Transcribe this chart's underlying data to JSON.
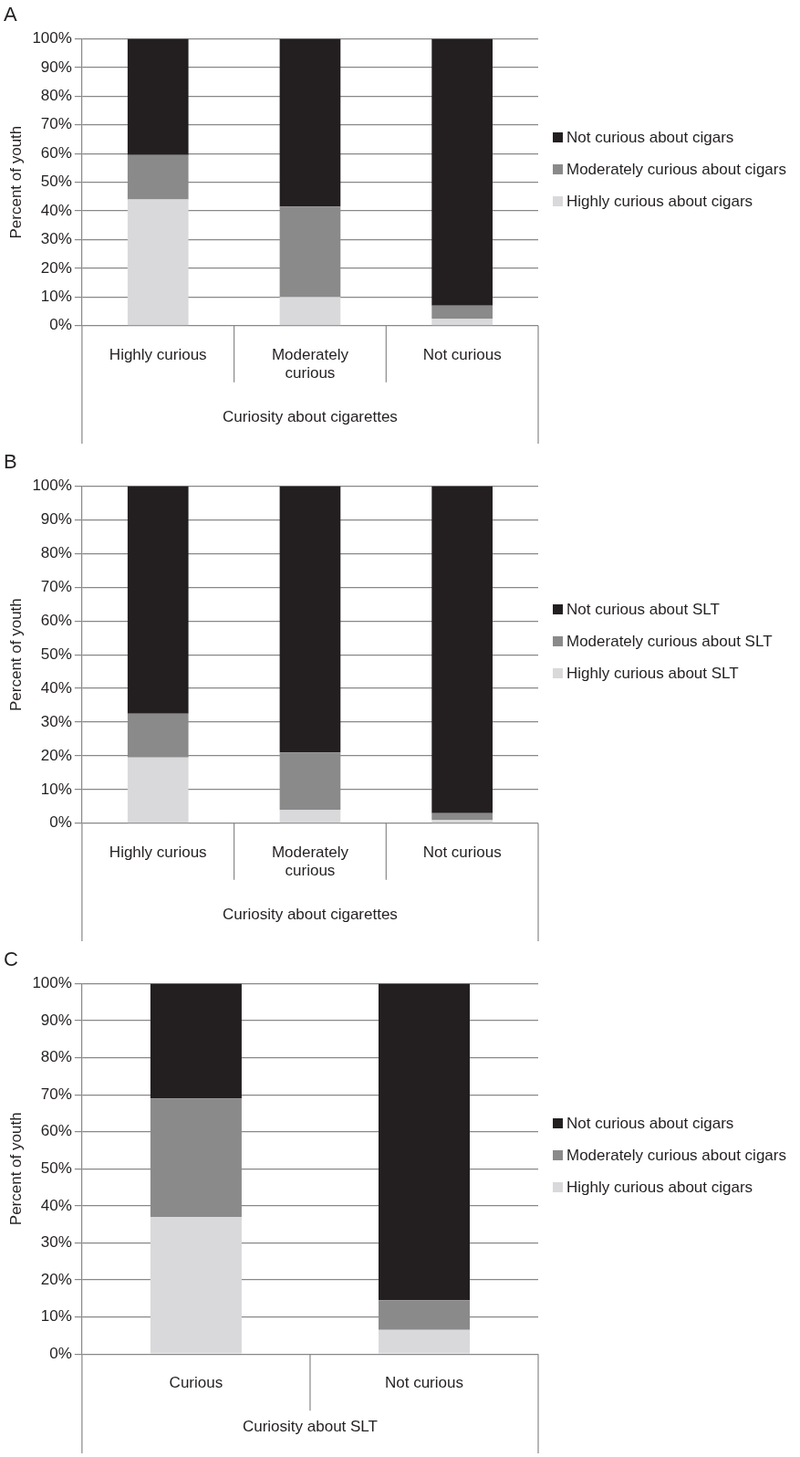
{
  "chart_data": [
    {
      "type": "bar",
      "title": "A",
      "stacked": true,
      "categories": [
        "Highly curious",
        "Moderately curious",
        "Not curious"
      ],
      "xlabel": "Curiosity about cigarettes",
      "ylabel": "Percent of youth",
      "ylim": [
        0,
        100
      ],
      "yticks": [
        {
          "value": 0,
          "label": "0%"
        },
        {
          "value": 10,
          "label": "10%"
        },
        {
          "value": 20,
          "label": "20%"
        },
        {
          "value": 30,
          "label": "30%"
        },
        {
          "value": 40,
          "label": "40%"
        },
        {
          "value": 50,
          "label": "50%"
        },
        {
          "value": 60,
          "label": "60%"
        },
        {
          "value": 70,
          "label": "70%"
        },
        {
          "value": 80,
          "label": "80%"
        },
        {
          "value": 90,
          "label": "90%"
        },
        {
          "value": 100,
          "label": "100%"
        }
      ],
      "grid": "y",
      "legend": "right",
      "series": [
        {
          "name": "Highly curious about cigars",
          "color": "#d9d9db",
          "values": [
            44,
            10,
            2.5
          ]
        },
        {
          "name": "Moderately curious about cigars",
          "color": "#8a8a8a",
          "values": [
            15.5,
            31.5,
            4.5
          ]
        },
        {
          "name": "Not curious about cigars",
          "color": "#231f20",
          "values": [
            40.5,
            58.5,
            93
          ]
        }
      ]
    },
    {
      "type": "bar",
      "title": "B",
      "stacked": true,
      "categories": [
        "Highly curious",
        "Moderately curious",
        "Not curious"
      ],
      "xlabel": "Curiosity about cigarettes",
      "ylabel": "Percent of youth",
      "ylim": [
        0,
        100
      ],
      "yticks": [
        {
          "value": 0,
          "label": "0%"
        },
        {
          "value": 10,
          "label": "10%"
        },
        {
          "value": 20,
          "label": "20%"
        },
        {
          "value": 30,
          "label": "30%"
        },
        {
          "value": 40,
          "label": "40%"
        },
        {
          "value": 50,
          "label": "50%"
        },
        {
          "value": 60,
          "label": "60%"
        },
        {
          "value": 70,
          "label": "70%"
        },
        {
          "value": 80,
          "label": "80%"
        },
        {
          "value": 90,
          "label": "90%"
        },
        {
          "value": 100,
          "label": "100%"
        }
      ],
      "grid": "y",
      "legend": "right",
      "series": [
        {
          "name": "Highly curious about SLT",
          "color": "#d9d9db",
          "values": [
            19.5,
            4,
            1
          ]
        },
        {
          "name": "Moderately curious about SLT",
          "color": "#8a8a8a",
          "values": [
            13,
            17,
            2
          ]
        },
        {
          "name": "Not curious about SLT",
          "color": "#231f20",
          "values": [
            67.5,
            79,
            97
          ]
        }
      ]
    },
    {
      "type": "bar",
      "title": "C",
      "stacked": true,
      "categories": [
        "Curious",
        "Not curious"
      ],
      "xlabel": "Curiosity about SLT",
      "ylabel": "Percent of youth",
      "ylim": [
        0,
        100
      ],
      "yticks": [
        {
          "value": 0,
          "label": "0%"
        },
        {
          "value": 10,
          "label": "10%"
        },
        {
          "value": 20,
          "label": "20%"
        },
        {
          "value": 30,
          "label": "30%"
        },
        {
          "value": 40,
          "label": "40%"
        },
        {
          "value": 50,
          "label": "50%"
        },
        {
          "value": 60,
          "label": "60%"
        },
        {
          "value": 70,
          "label": "70%"
        },
        {
          "value": 80,
          "label": "80%"
        },
        {
          "value": 90,
          "label": "90%"
        },
        {
          "value": 100,
          "label": "100%"
        }
      ],
      "grid": "y",
      "legend": "right",
      "series": [
        {
          "name": "Highly curious about cigars",
          "color": "#d9d9db",
          "values": [
            37,
            6.5
          ]
        },
        {
          "name": "Moderately curious about cigars",
          "color": "#8a8a8a",
          "values": [
            32,
            8
          ]
        },
        {
          "name": "Not curious about cigars",
          "color": "#231f20",
          "values": [
            31,
            85.5
          ]
        }
      ]
    }
  ]
}
